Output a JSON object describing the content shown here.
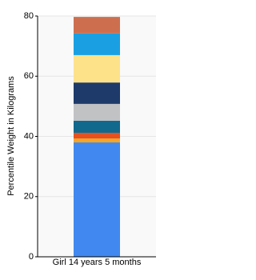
{
  "chart_data": {
    "type": "stacked_bar",
    "y_label": "Percentile Weight in Kilograms",
    "categories": [
      "Girl 14 years 5 months"
    ],
    "series": [
      {
        "color": "#4189f0",
        "values": [
          38.0
        ]
      },
      {
        "color": "#f5a623",
        "values": [
          1.3
        ]
      },
      {
        "color": "#e8501e",
        "values": [
          1.9
        ]
      },
      {
        "color": "#11698e",
        "values": [
          4.0
        ]
      },
      {
        "color": "#c0c2c4",
        "values": [
          5.6
        ]
      },
      {
        "color": "#1d3a6a",
        "values": [
          7.1
        ]
      },
      {
        "color": "#fde28a",
        "values": [
          9.1
        ]
      },
      {
        "color": "#1aa0e2",
        "values": [
          7.2
        ]
      },
      {
        "color": "#cd6f4f",
        "values": [
          5.5
        ]
      }
    ],
    "ylim": [
      0,
      80
    ],
    "yticks": [
      0,
      20,
      40,
      60,
      80
    ],
    "grid": true
  }
}
